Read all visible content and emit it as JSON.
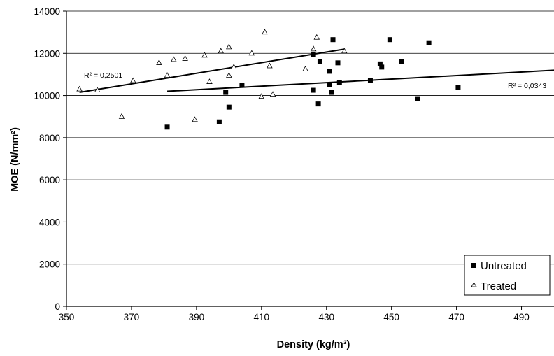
{
  "chart_data": {
    "type": "scatter",
    "xlabel": "Density (kg/m³)",
    "ylabel": "MOE (N/mm²)",
    "xlim": [
      350,
      500
    ],
    "ylim": [
      0,
      14000
    ],
    "x_ticks": [
      350,
      370,
      390,
      410,
      430,
      450,
      470,
      490
    ],
    "y_ticks": [
      0,
      2000,
      4000,
      6000,
      8000,
      10000,
      12000,
      14000
    ],
    "grid": "horizontal",
    "legend_position": "bottom-right",
    "series": [
      {
        "name": "Untreated",
        "marker": "filled-square",
        "color": "#000000",
        "points": [
          [
            381,
            8500
          ],
          [
            397,
            8750
          ],
          [
            399,
            10150
          ],
          [
            400,
            9450
          ],
          [
            404,
            10500
          ],
          [
            426,
            10250
          ],
          [
            426,
            11950
          ],
          [
            427.5,
            9600
          ],
          [
            428,
            11600
          ],
          [
            431,
            10500
          ],
          [
            431,
            11150
          ],
          [
            431.5,
            10150
          ],
          [
            432,
            12650
          ],
          [
            433.5,
            11550
          ],
          [
            434,
            10600
          ],
          [
            443.5,
            10700
          ],
          [
            446.5,
            11500
          ],
          [
            447,
            11350
          ],
          [
            449.5,
            12650
          ],
          [
            453,
            11600
          ],
          [
            458,
            9850
          ],
          [
            461.5,
            12500
          ],
          [
            470.5,
            10400
          ]
        ],
        "trendline": {
          "x": [
            381,
            500
          ],
          "y": [
            10200,
            11200
          ],
          "r2_label": "R² = 0,0343"
        }
      },
      {
        "name": "Treated",
        "marker": "open-triangle",
        "color": "#000000",
        "points": [
          [
            354,
            10300
          ],
          [
            359.5,
            10250
          ],
          [
            367,
            9000
          ],
          [
            370.5,
            10700
          ],
          [
            378.5,
            11550
          ],
          [
            381,
            10950
          ],
          [
            383,
            11700
          ],
          [
            386.5,
            11750
          ],
          [
            389.5,
            8850
          ],
          [
            392.5,
            11900
          ],
          [
            394,
            10650
          ],
          [
            397.5,
            12100
          ],
          [
            400,
            12300
          ],
          [
            400,
            10950
          ],
          [
            401.5,
            11350
          ],
          [
            407,
            12000
          ],
          [
            410,
            9950
          ],
          [
            411,
            13000
          ],
          [
            412.5,
            11400
          ],
          [
            413.5,
            10050
          ],
          [
            423.5,
            11250
          ],
          [
            426,
            12200
          ],
          [
            427,
            12750
          ],
          [
            435.5,
            12100
          ]
        ],
        "trendline": {
          "x": [
            354,
            435.5
          ],
          "y": [
            10150,
            12200
          ],
          "r2_label": "R² = 0,2501"
        }
      }
    ]
  }
}
